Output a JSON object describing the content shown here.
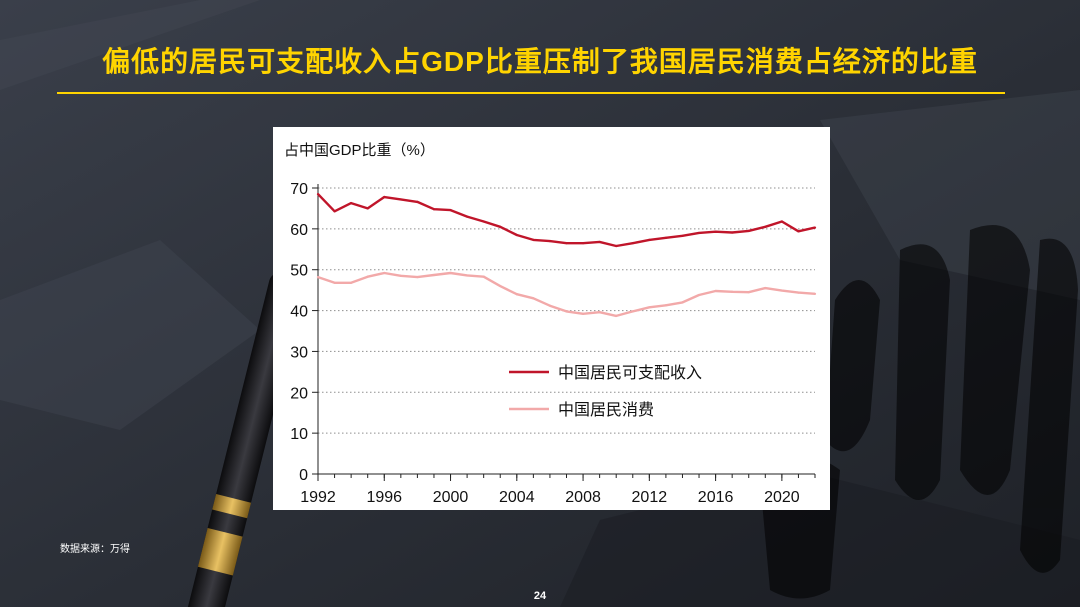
{
  "slide": {
    "title": "偏低的居民可支配收入占GDP比重压制了我国居民消费占经济的比重",
    "source_note": "数据来源：万得",
    "page_number": "24",
    "accent_color": "#ffd400"
  },
  "chart_data": {
    "type": "line",
    "title": "占中国GDP比重（%）",
    "xlabel": "",
    "ylabel": "",
    "xlim": [
      1992,
      2022
    ],
    "ylim": [
      0,
      70
    ],
    "x_ticks": [
      1992,
      1996,
      2000,
      2004,
      2008,
      2012,
      2016,
      2020
    ],
    "y_ticks": [
      0,
      10,
      20,
      30,
      40,
      50,
      60,
      70
    ],
    "grid": "horizontal-dotted",
    "legend_position": "center-right",
    "x": [
      1992,
      1993,
      1994,
      1995,
      1996,
      1997,
      1998,
      1999,
      2000,
      2001,
      2002,
      2003,
      2004,
      2005,
      2006,
      2007,
      2008,
      2009,
      2010,
      2011,
      2012,
      2013,
      2014,
      2015,
      2016,
      2017,
      2018,
      2019,
      2020,
      2021,
      2022
    ],
    "series": [
      {
        "name": "中国居民可支配收入",
        "color": "#c0152a",
        "values": [
          68.5,
          64.3,
          66.3,
          65.0,
          67.8,
          67.2,
          66.6,
          64.8,
          64.6,
          63.0,
          61.8,
          60.5,
          58.5,
          57.3,
          57.0,
          56.5,
          56.5,
          56.8,
          55.8,
          56.5,
          57.3,
          57.8,
          58.3,
          59.0,
          59.3,
          59.1,
          59.5,
          60.5,
          61.8,
          59.4,
          60.3
        ]
      },
      {
        "name": "中国居民消费",
        "color": "#f2a9a9",
        "values": [
          48.2,
          46.8,
          46.8,
          48.3,
          49.2,
          48.5,
          48.2,
          48.7,
          49.2,
          48.6,
          48.3,
          46.0,
          44.0,
          43.0,
          41.2,
          39.8,
          39.2,
          39.6,
          38.7,
          39.8,
          40.8,
          41.3,
          42.0,
          43.8,
          44.8,
          44.6,
          44.5,
          45.5,
          44.9,
          44.4,
          44.1
        ]
      }
    ]
  }
}
